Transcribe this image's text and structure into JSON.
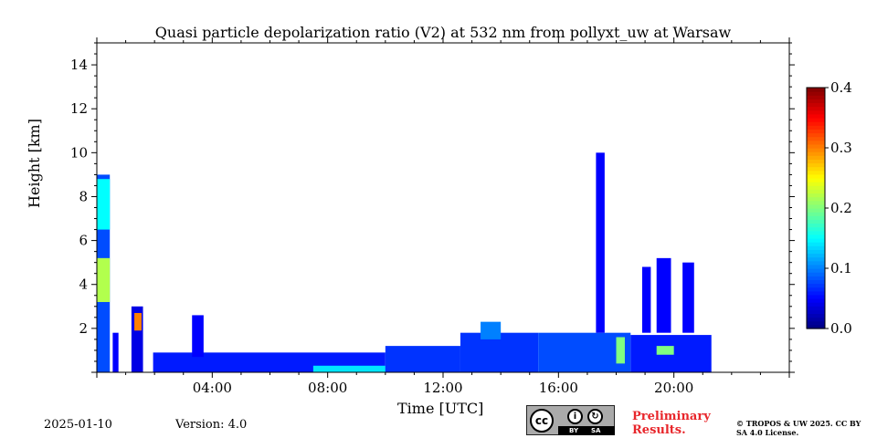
{
  "chart_data": {
    "type": "heatmap",
    "title": "Quasi particle depolarization ratio (V2) at 532 nm from pollyxt_uw at Warsaw",
    "xlabel": "Time [UTC]",
    "ylabel": "Height [km]",
    "x_range_hours": [
      0,
      24
    ],
    "xlim": [
      "00:00",
      "24:00"
    ],
    "ylim": [
      0,
      15
    ],
    "x_ticks": [
      "04:00",
      "08:00",
      "12:00",
      "16:00",
      "20:00"
    ],
    "y_ticks": [
      2,
      4,
      6,
      8,
      10,
      12,
      14
    ],
    "colorbar": {
      "range": [
        0.0,
        0.4
      ],
      "ticks": [
        "0.0",
        "0.1",
        "0.2",
        "0.3",
        "0.4"
      ],
      "colormap": "jet"
    },
    "grid": false,
    "regions": [
      {
        "t0": 0.0,
        "t1": 0.45,
        "h0": 0.0,
        "h1": 9.0,
        "value": 0.08
      },
      {
        "t0": 0.0,
        "t1": 0.45,
        "h0": 3.2,
        "h1": 5.2,
        "value": 0.22
      },
      {
        "t0": 0.0,
        "t1": 0.45,
        "h0": 6.5,
        "h1": 8.8,
        "value": 0.15
      },
      {
        "t0": 0.55,
        "t1": 0.75,
        "h0": 0.0,
        "h1": 1.8,
        "value": 0.05
      },
      {
        "t0": 1.2,
        "t1": 1.6,
        "h0": 0.0,
        "h1": 3.0,
        "value": 0.04
      },
      {
        "t0": 1.3,
        "t1": 1.55,
        "h0": 1.9,
        "h1": 2.7,
        "value": 0.3
      },
      {
        "t0": 1.95,
        "t1": 10.0,
        "h0": 0.0,
        "h1": 0.9,
        "value": 0.06
      },
      {
        "t0": 3.3,
        "t1": 3.7,
        "h0": 0.7,
        "h1": 2.6,
        "value": 0.05
      },
      {
        "t0": 7.5,
        "t1": 10.0,
        "h0": 0.0,
        "h1": 0.3,
        "value": 0.14
      },
      {
        "t0": 10.0,
        "t1": 12.6,
        "h0": 0.0,
        "h1": 1.2,
        "value": 0.07
      },
      {
        "t0": 12.6,
        "t1": 15.3,
        "h0": 0.0,
        "h1": 1.8,
        "value": 0.07
      },
      {
        "t0": 13.3,
        "t1": 14.0,
        "h0": 1.5,
        "h1": 2.3,
        "value": 0.1
      },
      {
        "t0": 15.3,
        "t1": 18.5,
        "h0": 0.0,
        "h1": 1.8,
        "value": 0.08
      },
      {
        "t0": 17.3,
        "t1": 17.6,
        "h0": 1.8,
        "h1": 10.0,
        "value": 0.05
      },
      {
        "t0": 18.0,
        "t1": 18.3,
        "h0": 0.4,
        "h1": 1.6,
        "value": 0.2
      },
      {
        "t0": 18.5,
        "t1": 21.3,
        "h0": 0.0,
        "h1": 1.7,
        "value": 0.06
      },
      {
        "t0": 18.9,
        "t1": 19.2,
        "h0": 1.8,
        "h1": 4.8,
        "value": 0.05
      },
      {
        "t0": 19.4,
        "t1": 19.9,
        "h0": 1.8,
        "h1": 5.2,
        "value": 0.05
      },
      {
        "t0": 20.3,
        "t1": 20.7,
        "h0": 1.8,
        "h1": 5.0,
        "value": 0.05
      },
      {
        "t0": 19.4,
        "t1": 20.0,
        "h0": 0.8,
        "h1": 1.2,
        "value": 0.2
      }
    ]
  },
  "footer": {
    "date": "2025-01-10",
    "version": "Version: 4.0",
    "preliminary": "Preliminary Results.",
    "copyright": "© TROPOS & UW 2025. CC BY SA 4.0 License.",
    "cc_badge": {
      "cc": "cc",
      "by": "BY",
      "sa": "SA"
    }
  },
  "colors": {
    "background": "#ffffff",
    "text": "#000000",
    "preliminary": "#e8262b",
    "badge": "#aaaaaa"
  }
}
